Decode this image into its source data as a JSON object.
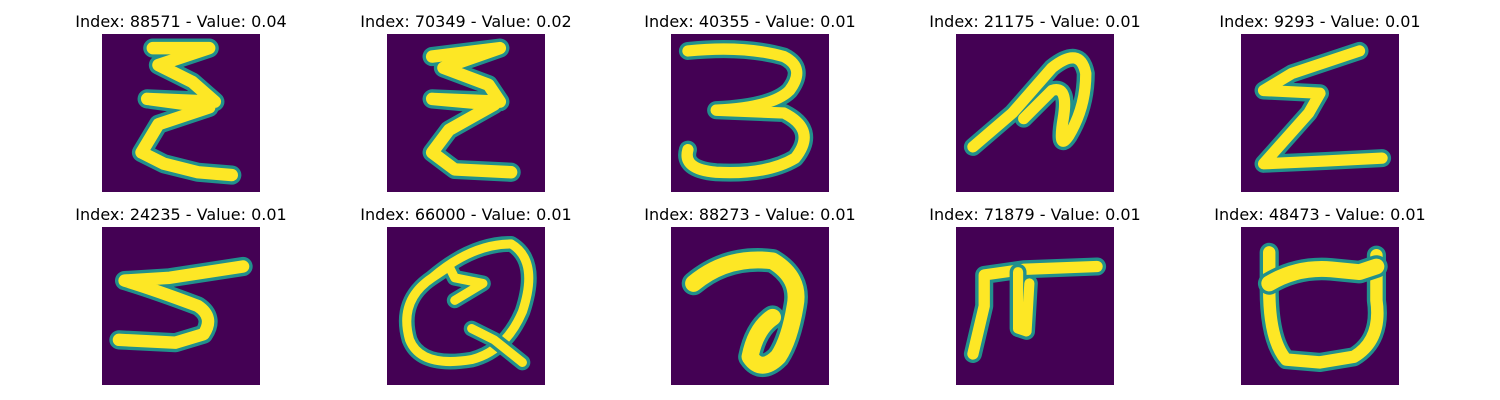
{
  "colors": {
    "background": "#440154",
    "mid": "#21908c",
    "foreground": "#fde725",
    "page": "#ffffff"
  },
  "panels": [
    {
      "title": "Index: 88571 - Value: 0.04",
      "glyph": "epsilon-like stroke"
    },
    {
      "title": "Index: 70349 - Value: 0.02",
      "glyph": "epsilon-like stroke"
    },
    {
      "title": "Index: 40355 - Value: 0.01",
      "glyph": "digit three"
    },
    {
      "title": "Index: 21175 - Value: 0.01",
      "glyph": "loop stroke"
    },
    {
      "title": "Index: 9293 - Value: 0.01",
      "glyph": "z-like stroke"
    },
    {
      "title": "Index: 24235 - Value: 0.01",
      "glyph": "s-like stroke"
    },
    {
      "title": "Index: 66000 - Value: 0.01",
      "glyph": "q-like loop"
    },
    {
      "title": "Index: 88273 - Value: 0.01",
      "glyph": "hook stroke"
    },
    {
      "title": "Index: 71879 - Value: 0.01",
      "glyph": "f-like stroke"
    },
    {
      "title": "Index: 48473 - Value: 0.01",
      "glyph": "cup shape"
    }
  ]
}
